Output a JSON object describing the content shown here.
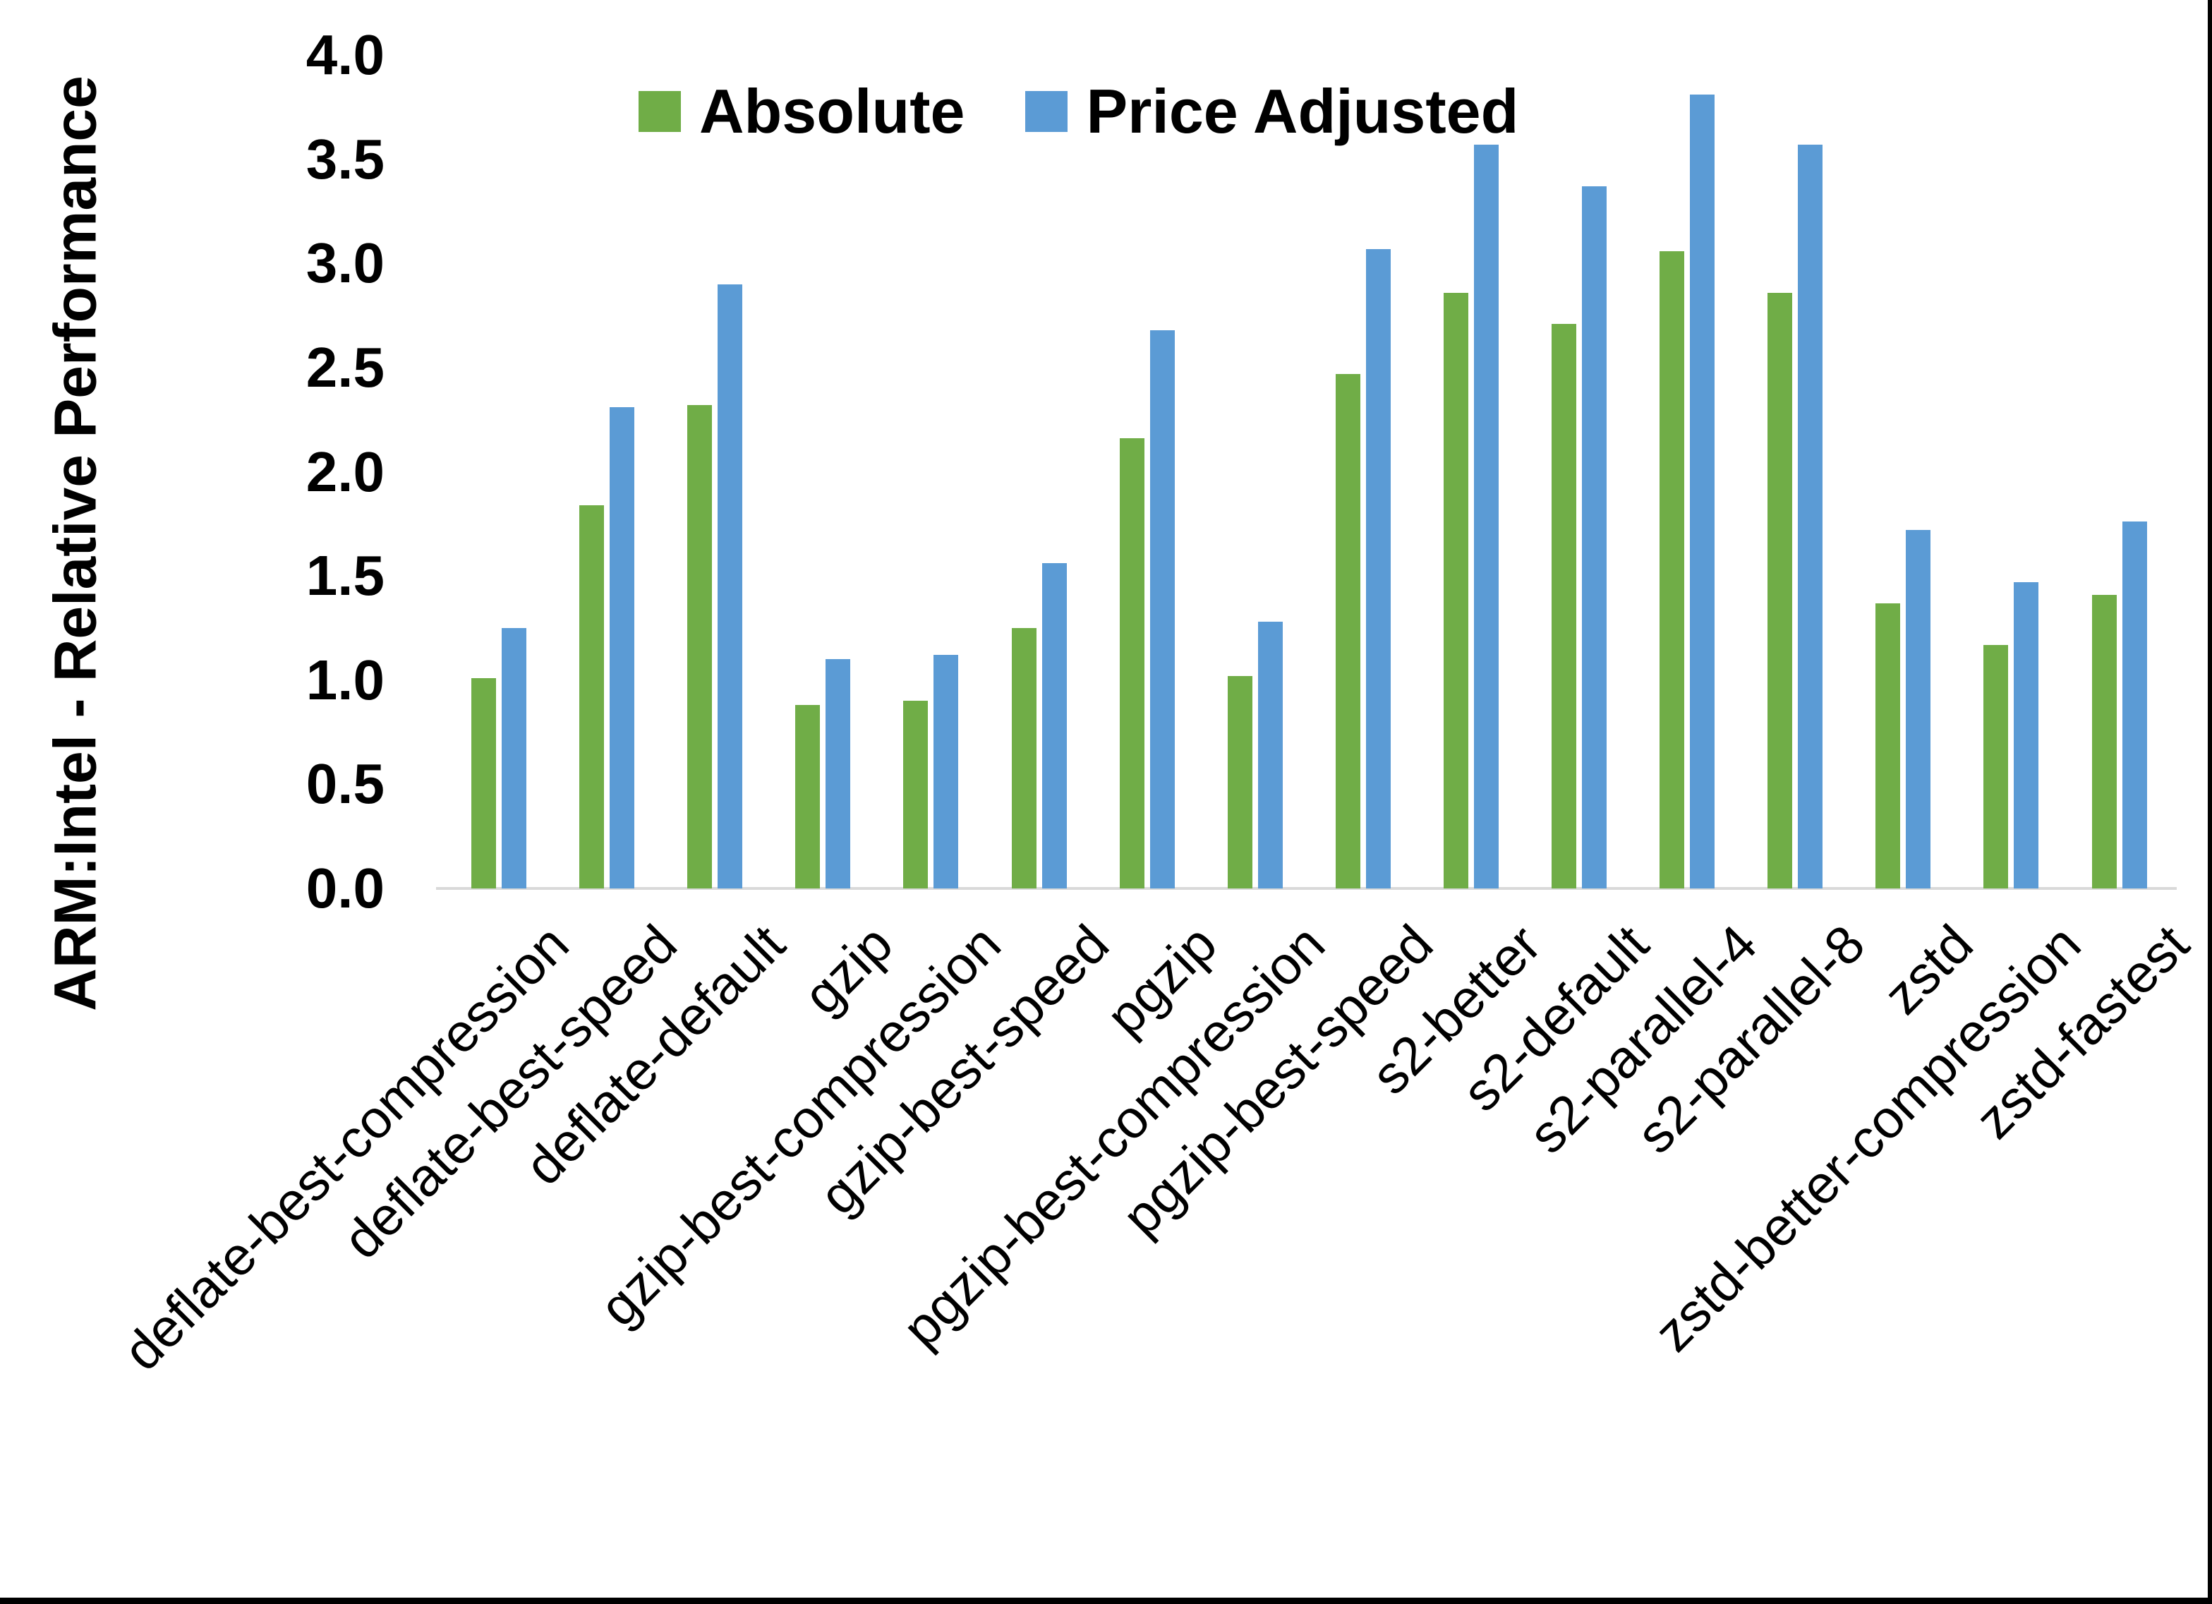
{
  "page": {
    "background": "#ffffff",
    "frame_border_color": "#000000"
  },
  "chart_data": {
    "type": "bar",
    "title": "",
    "xlabel": "",
    "ylabel": "ARM:Intel - Relative Performance",
    "ylim": [
      0,
      4.0
    ],
    "ytick_step": 0.5,
    "yticks": [
      "4.0",
      "3.5",
      "3.0",
      "2.5",
      "2.0",
      "1.5",
      "1.0",
      "0.5",
      "0.0"
    ],
    "grid": false,
    "legend_position": "top-center",
    "axis_line_color": "#d9d9d9",
    "text_color": "#000000",
    "categories": [
      "deflate-best-compression",
      "deflate-best-speed",
      "deflate-default",
      "gzip",
      "gzip-best-compression",
      "gzip-best-speed",
      "pgzip",
      "pgzip-best-compression",
      "pgzip-best-speed",
      "s2-better",
      "s2-default",
      "s2-parallel-4",
      "s2-parallel-8",
      "zstd",
      "zstd-better-compression",
      "zstd-fastest"
    ],
    "series": [
      {
        "name": "Absolute",
        "color": "#70AD47",
        "values": [
          1.01,
          1.84,
          2.32,
          0.88,
          0.9,
          1.25,
          2.16,
          1.02,
          2.47,
          2.86,
          2.71,
          3.06,
          2.86,
          1.37,
          1.17,
          1.41
        ]
      },
      {
        "name": "Price Adjusted",
        "color": "#5B9BD5",
        "values": [
          1.25,
          2.31,
          2.9,
          1.1,
          1.12,
          1.56,
          2.68,
          1.28,
          3.07,
          3.57,
          3.37,
          3.81,
          3.57,
          1.72,
          1.47,
          1.76
        ]
      }
    ]
  }
}
